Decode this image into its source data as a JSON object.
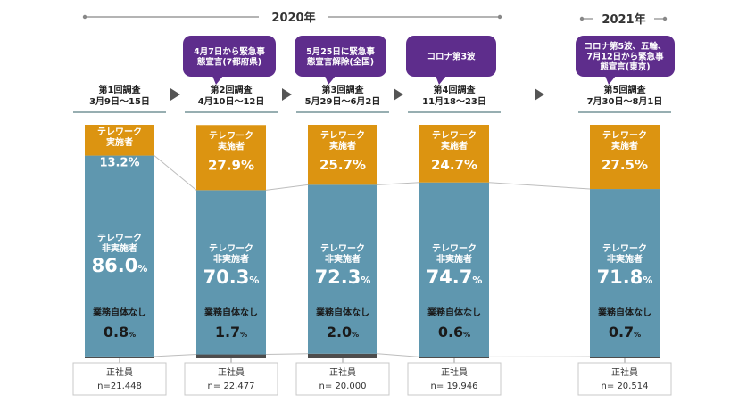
{
  "periods": [
    {
      "label": "2020年"
    },
    {
      "label": "2021年"
    }
  ],
  "callouts": [
    {
      "text": "4月7日から緊急事態宣言(7都府県)",
      "lines": [
        "4月7日から緊急事",
        "態宣言(7都府県)"
      ]
    },
    {
      "text": "5月25日に緊急事態宣言解除(全国)",
      "lines": [
        "5月25日に緊急事",
        "態宣言解除(全国)"
      ]
    },
    {
      "text": "コロナ第3波",
      "lines": [
        "コロナ第3波"
      ]
    },
    {
      "text": "コロナ第5波、五輪、7月12日から緊急事態宣言(東京)",
      "lines": [
        "コロナ第5波、五輪、",
        "7月12日から緊急事",
        "態宣言(東京)"
      ]
    }
  ],
  "colors": {
    "telework": "#DC9411",
    "non_telework": "#5F97AF",
    "no_work": "#4D4D4D",
    "callout": "#5E2D8C",
    "arrow": "#555555",
    "underline": "#2F5D63"
  },
  "chart_data": {
    "type": "bar",
    "stacked": true,
    "unit": "%",
    "categories": [
      {
        "title": "第1回調査",
        "dates": "3月9日～15日",
        "note": "正社員",
        "n": "n=21,448"
      },
      {
        "title": "第2回調査",
        "dates": "4月10日～12日",
        "note": "正社員",
        "n": "n= 22,477"
      },
      {
        "title": "第3回調査",
        "dates": "5月29日～6月2日",
        "note": "正社員",
        "n": "n= 20,000"
      },
      {
        "title": "第4回調査",
        "dates": "11月18～23日",
        "note": "正社員",
        "n": "n= 19,946"
      },
      {
        "title": "第5回調査",
        "dates": "7月30日～8月1日",
        "note": "正社員",
        "n": "n= 20,514"
      }
    ],
    "series": [
      {
        "key": "no_work",
        "name": "業務自体なし",
        "values": [
          0.8,
          1.7,
          2.0,
          0.6,
          0.7
        ]
      },
      {
        "key": "non_telework",
        "name": "テレワーク非実施者",
        "values": [
          86.0,
          70.3,
          72.3,
          74.7,
          71.8
        ]
      },
      {
        "key": "telework",
        "name": "テレワーク実施者",
        "values": [
          13.2,
          27.9,
          25.7,
          24.7,
          27.5
        ]
      }
    ],
    "value_labels": {
      "no_work": [
        "0.8",
        "1.7",
        "2.0",
        "0.6",
        "0.7"
      ],
      "non_telework": [
        "86.0",
        "70.3",
        "72.3",
        "74.7",
        "71.8"
      ],
      "telework": [
        "13.2%",
        "27.9%",
        "25.7%",
        "24.7%",
        "27.5%"
      ]
    },
    "segment_labels": {
      "telework": [
        "テレワーク",
        "実施者"
      ],
      "non_telework": [
        "テレワーク",
        "非実施者"
      ],
      "no_work": [
        "業務自体なし"
      ]
    },
    "ylim": [
      0,
      100
    ]
  }
}
